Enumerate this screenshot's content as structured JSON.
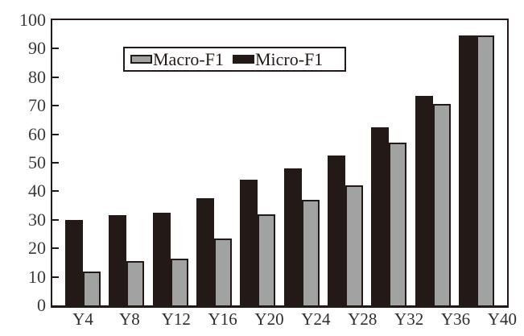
{
  "chart_data": {
    "type": "bar",
    "title": "",
    "xlabel": "",
    "ylabel": "",
    "categories": [
      "Y4",
      "Y8",
      "Y12",
      "Y16",
      "Y20",
      "Y24",
      "Y28",
      "Y32",
      "Y36",
      "Y40"
    ],
    "series": [
      {
        "name": "Macro-F1",
        "color": "#a1a3a2",
        "values": [
          12,
          15.5,
          16.5,
          23.5,
          32,
          37,
          42,
          57,
          70.5,
          94.5
        ]
      },
      {
        "name": "Micro-F1",
        "color": "#231a17",
        "values": [
          30,
          31.5,
          32.5,
          37.5,
          44,
          48,
          52.5,
          62.5,
          73.5,
          94.5
        ]
      }
    ],
    "bar_draw_order": [
      "Micro-F1",
      "Macro-F1"
    ],
    "ylim": [
      0,
      100
    ],
    "y_ticks": [
      0,
      10,
      20,
      30,
      40,
      50,
      60,
      70,
      80,
      90,
      100
    ],
    "grid": false,
    "legend_position": "top-left-inside"
  },
  "legend": {
    "items": [
      {
        "label": "Macro-F1",
        "swatch": "#a1a3a2"
      },
      {
        "label": "Micro-F1",
        "swatch": "#231a17"
      }
    ]
  },
  "colors": {
    "bar_black": "#231a17",
    "bar_gray": "#a1a3a2",
    "frame": "#231a17",
    "axis_text": "#3a3a3a",
    "background": "#ffffff"
  }
}
